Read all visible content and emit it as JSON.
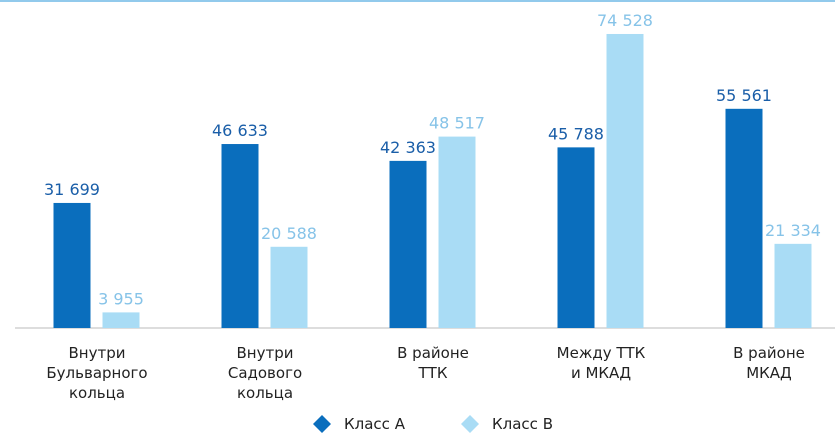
{
  "chart_data": {
    "type": "bar",
    "categories": [
      "Внутри\nБульварного\nкольца",
      "Внутри\nСадового\nкольца",
      "В районе\nТТК",
      "Между ТТК\nи МКАД",
      "В районе\nМКАД"
    ],
    "series": [
      {
        "name": "Класс А",
        "color": "#0a6ebd",
        "label_color": "#1a5ea8",
        "values": [
          31699,
          46633,
          42363,
          45788,
          55561
        ],
        "value_labels": [
          "31 699",
          "46 633",
          "42 363",
          "45 788",
          "55 561"
        ]
      },
      {
        "name": "Класс В",
        "color": "#a9dcf5",
        "label_color": "#86c3e8",
        "values": [
          3955,
          20588,
          48517,
          74528,
          21334
        ],
        "value_labels": [
          "3 955",
          "20 588",
          "48 517",
          "74 528",
          "21 334"
        ]
      }
    ],
    "ylim": [
      0,
      80000
    ],
    "legend": "bottom"
  }
}
